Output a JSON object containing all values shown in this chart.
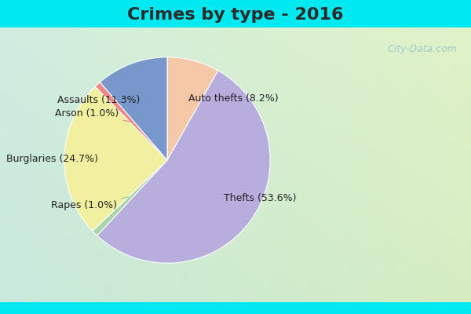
{
  "title": "Crimes by type - 2016",
  "slices": [
    {
      "label": "Auto thefts",
      "pct": 8.2,
      "color": "#f5c9a8"
    },
    {
      "label": "Thefts",
      "pct": 53.6,
      "color": "#b8aedd"
    },
    {
      "label": "Rapes",
      "pct": 1.0,
      "color": "#a8d4a8"
    },
    {
      "label": "Burglaries",
      "pct": 24.7,
      "color": "#f0f0a0"
    },
    {
      "label": "Arson",
      "pct": 1.0,
      "color": "#f08888"
    },
    {
      "label": "Assaults",
      "pct": 11.3,
      "color": "#7898cc"
    }
  ],
  "bg_cyan": "#00e8f0",
  "bg_top_color": "#c8f0e8",
  "bg_bottom_color": "#c8eedc",
  "title_fontsize": 16,
  "label_fontsize": 9,
  "watermark": "City-Data.com",
  "watermark_color": "#a0c8cc"
}
